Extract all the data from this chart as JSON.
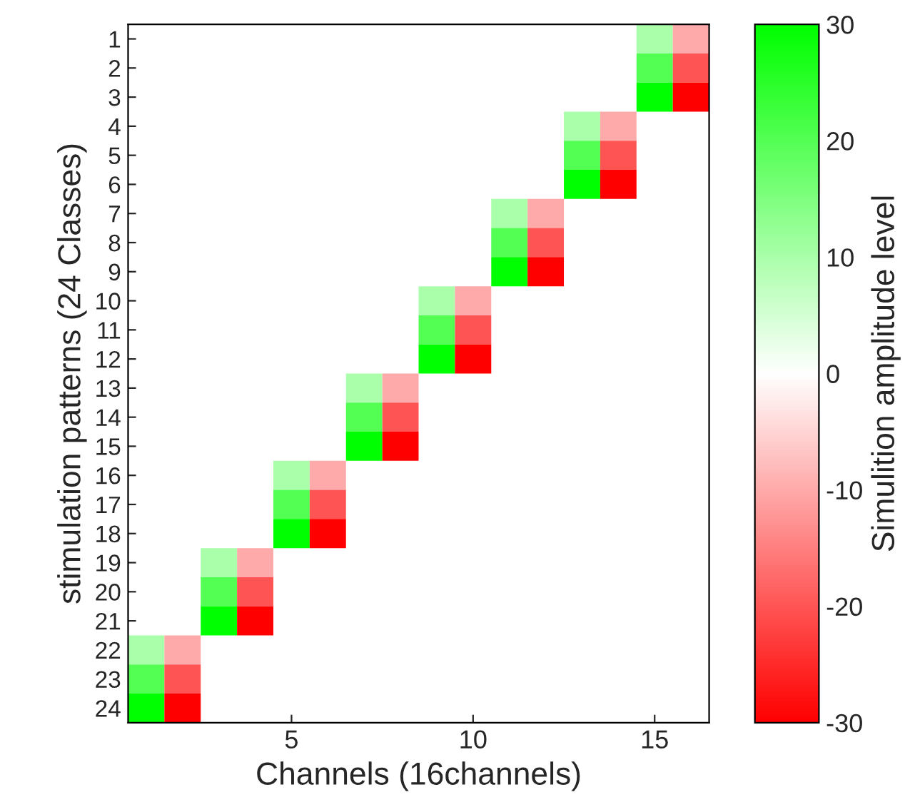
{
  "chart_data": {
    "type": "heatmap",
    "xlabel": "Channels (16channels)",
    "ylabel": "stimulation patterns (24 Classes)",
    "clabel": "Simulition amplitude level",
    "categories": [
      null,
      null,
      null,
      null,
      "5",
      null,
      null,
      null,
      null,
      "10",
      null,
      null,
      null,
      null,
      "15",
      null
    ],
    "y_categories": [
      "1",
      "2",
      "3",
      "4",
      "5",
      "6",
      "7",
      "8",
      "9",
      "10",
      "11",
      "12",
      "13",
      "14",
      "15",
      "16",
      "17",
      "18",
      "19",
      "20",
      "21",
      "22",
      "23",
      "24"
    ],
    "cells": [
      [
        null,
        null,
        null,
        null,
        null,
        null,
        null,
        null,
        null,
        null,
        null,
        null,
        null,
        null,
        10,
        -10
      ],
      [
        null,
        null,
        null,
        null,
        null,
        null,
        null,
        null,
        null,
        null,
        null,
        null,
        null,
        null,
        20,
        -20
      ],
      [
        null,
        null,
        null,
        null,
        null,
        null,
        null,
        null,
        null,
        null,
        null,
        null,
        null,
        null,
        30,
        -30
      ],
      [
        null,
        null,
        null,
        null,
        null,
        null,
        null,
        null,
        null,
        null,
        null,
        null,
        10,
        -10,
        null,
        null
      ],
      [
        null,
        null,
        null,
        null,
        null,
        null,
        null,
        null,
        null,
        null,
        null,
        null,
        20,
        -20,
        null,
        null
      ],
      [
        null,
        null,
        null,
        null,
        null,
        null,
        null,
        null,
        null,
        null,
        null,
        null,
        30,
        -30,
        null,
        null
      ],
      [
        null,
        null,
        null,
        null,
        null,
        null,
        null,
        null,
        null,
        null,
        10,
        -10,
        null,
        null,
        null,
        null
      ],
      [
        null,
        null,
        null,
        null,
        null,
        null,
        null,
        null,
        null,
        null,
        20,
        -20,
        null,
        null,
        null,
        null
      ],
      [
        null,
        null,
        null,
        null,
        null,
        null,
        null,
        null,
        null,
        null,
        30,
        -30,
        null,
        null,
        null,
        null
      ],
      [
        null,
        null,
        null,
        null,
        null,
        null,
        null,
        null,
        10,
        -10,
        null,
        null,
        null,
        null,
        null,
        null
      ],
      [
        null,
        null,
        null,
        null,
        null,
        null,
        null,
        null,
        20,
        -20,
        null,
        null,
        null,
        null,
        null,
        null
      ],
      [
        null,
        null,
        null,
        null,
        null,
        null,
        null,
        null,
        30,
        -30,
        null,
        null,
        null,
        null,
        null,
        null
      ],
      [
        null,
        null,
        null,
        null,
        null,
        null,
        10,
        -10,
        null,
        null,
        null,
        null,
        null,
        null,
        null,
        null
      ],
      [
        null,
        null,
        null,
        null,
        null,
        null,
        20,
        -20,
        null,
        null,
        null,
        null,
        null,
        null,
        null,
        null
      ],
      [
        null,
        null,
        null,
        null,
        null,
        null,
        30,
        -30,
        null,
        null,
        null,
        null,
        null,
        null,
        null,
        null
      ],
      [
        null,
        null,
        null,
        null,
        10,
        -10,
        null,
        null,
        null,
        null,
        null,
        null,
        null,
        null,
        null,
        null
      ],
      [
        null,
        null,
        null,
        null,
        20,
        -20,
        null,
        null,
        null,
        null,
        null,
        null,
        null,
        null,
        null,
        null
      ],
      [
        null,
        null,
        null,
        null,
        30,
        -30,
        null,
        null,
        null,
        null,
        null,
        null,
        null,
        null,
        null,
        null
      ],
      [
        null,
        null,
        10,
        -10,
        null,
        null,
        null,
        null,
        null,
        null,
        null,
        null,
        null,
        null,
        null,
        null
      ],
      [
        null,
        null,
        20,
        -20,
        null,
        null,
        null,
        null,
        null,
        null,
        null,
        null,
        null,
        null,
        null,
        null
      ],
      [
        null,
        null,
        30,
        -30,
        null,
        null,
        null,
        null,
        null,
        null,
        null,
        null,
        null,
        null,
        null,
        null
      ],
      [
        10,
        -10,
        null,
        null,
        null,
        null,
        null,
        null,
        null,
        null,
        null,
        null,
        null,
        null,
        null,
        null
      ],
      [
        20,
        -20,
        null,
        null,
        null,
        null,
        null,
        null,
        null,
        null,
        null,
        null,
        null,
        null,
        null,
        null
      ],
      [
        30,
        -30,
        null,
        null,
        null,
        null,
        null,
        null,
        null,
        null,
        null,
        null,
        null,
        null,
        null,
        null
      ]
    ],
    "clim": [
      -30,
      30
    ],
    "cticks": [
      -30,
      -20,
      -10,
      0,
      10,
      20,
      30
    ]
  }
}
